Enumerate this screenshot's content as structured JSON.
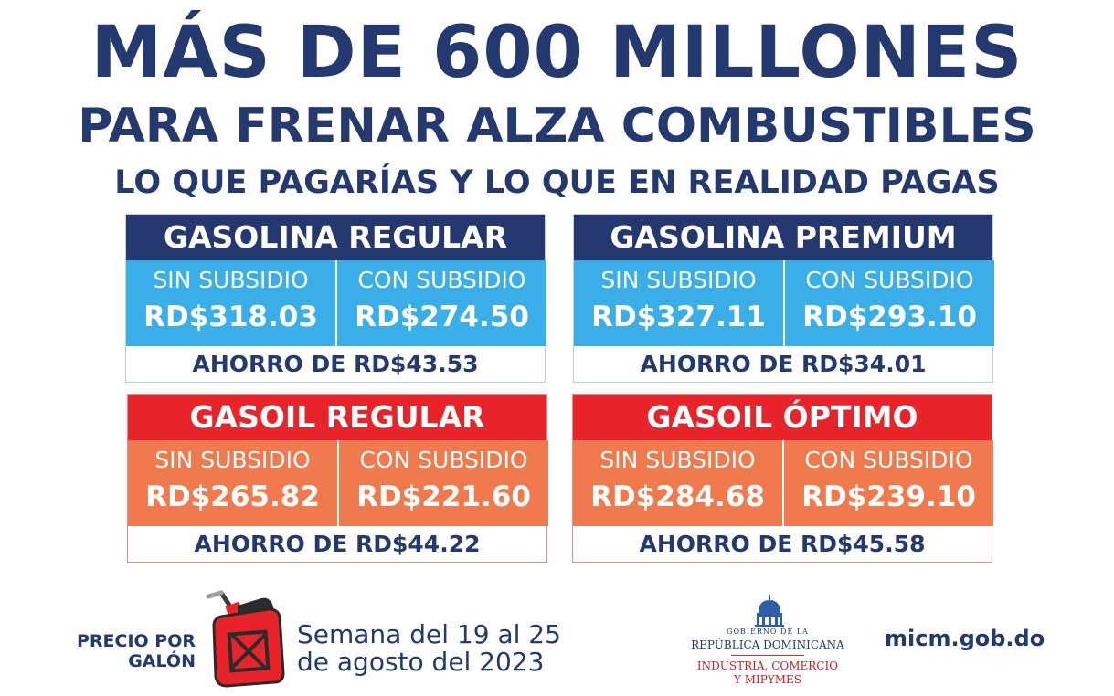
{
  "header": {
    "title": "MÁS DE 600 MILLONES",
    "subtitle": "PARA FRENAR ALZA COMBUSTIBLES",
    "tagline": "LO QUE PAGARÍAS Y LO QUE EN REALIDAD PAGAS"
  },
  "colors": {
    "navy": "#24386f",
    "sky": "#3aaee8",
    "red": "#e8232a",
    "orange": "#f07a4e"
  },
  "cards": [
    {
      "title": "GASOLINA REGULAR",
      "without_label": "SIN SUBSIDIO",
      "without_value": "RD$318.03",
      "with_label": "CON SUBSIDIO",
      "with_value": "RD$274.50",
      "saving": "AHORRO DE RD$43.53"
    },
    {
      "title": "GASOLINA PREMIUM",
      "without_label": "SIN SUBSIDIO",
      "without_value": "RD$327.11",
      "with_label": "CON SUBSIDIO",
      "with_value": "RD$293.10",
      "saving": "AHORRO DE RD$34.01"
    },
    {
      "title": "GASOIL REGULAR",
      "without_label": "SIN SUBSIDIO",
      "without_value": "RD$265.82",
      "with_label": "CON SUBSIDIO",
      "with_value": "RD$221.60",
      "saving": "AHORRO DE RD$44.22"
    },
    {
      "title": "GASOIL ÓPTIMO",
      "without_label": "SIN SUBSIDIO",
      "without_value": "RD$284.68",
      "with_label": "CON SUBSIDIO",
      "with_value": "RD$239.10",
      "saving": "AHORRO DE RD$45.58"
    }
  ],
  "footer": {
    "price_label_1": "PRECIO POR",
    "price_label_2": "GALÓN",
    "icon": "fuel-can-icon",
    "week_1": "Semana del 19 al 25",
    "week_2": "de agosto del 2023",
    "gov_1": "GOBIERNO DE LA",
    "gov_2": "REPÚBLICA DOMINICANA",
    "ministry_1": "INDUSTRIA, COMERCIO",
    "ministry_2": "Y MIPYMES",
    "website": "micm.gob.do"
  }
}
